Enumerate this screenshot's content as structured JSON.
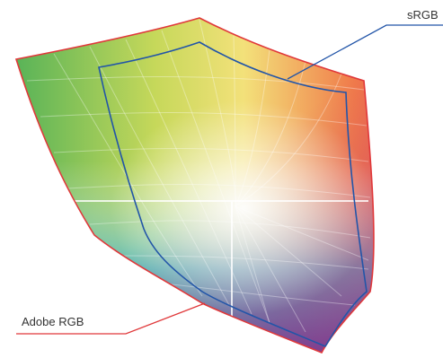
{
  "header_fragment": "",
  "labels": {
    "srgb": "sRGB",
    "adobe_rgb": "Adobe RGB"
  },
  "colors": {
    "adobe_rgb_outline": "#e0383a",
    "srgb_outline": "#2255a8",
    "header_accent": "#e8822c"
  }
}
